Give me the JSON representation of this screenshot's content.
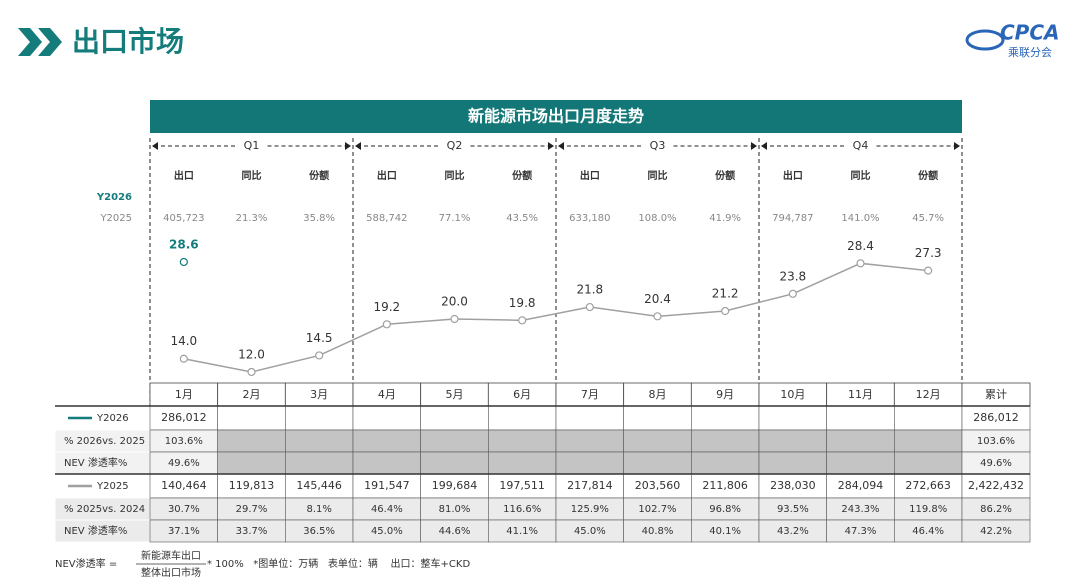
{
  "header": {
    "title": "出口市场",
    "logo": "CPCA",
    "logo_sub": "乘联分会"
  },
  "chart_data": {
    "type": "line",
    "title": "新能源市场出口月度走势",
    "categories": [
      "1月",
      "2月",
      "3月",
      "4月",
      "5月",
      "6月",
      "7月",
      "8月",
      "9月",
      "10月",
      "11月",
      "12月"
    ],
    "series": [
      {
        "name": "Y2026",
        "color": "#157c7c",
        "values": [
          28.6,
          null,
          null,
          null,
          null,
          null,
          null,
          null,
          null,
          null,
          null,
          null
        ],
        "value_labels": [
          "28.6",
          null,
          null,
          null,
          null,
          null,
          null,
          null,
          null,
          null,
          null,
          null
        ]
      },
      {
        "name": "Y2025",
        "color": "#a0a0a0",
        "values": [
          14.0,
          12.0,
          14.5,
          19.2,
          20.0,
          19.8,
          21.8,
          20.4,
          21.2,
          23.8,
          28.4,
          27.3
        ],
        "value_labels": [
          "14.0",
          "12.0",
          "14.5",
          "19.2",
          "20.0",
          "19.8",
          "21.8",
          "20.4",
          "21.2",
          "23.8",
          "28.4",
          "27.3"
        ]
      }
    ]
  },
  "quarters": [
    {
      "name": "Q1",
      "headers": [
        "出口",
        "同比",
        "份额"
      ],
      "y2025": [
        "405,723",
        "21.3%",
        "35.8%"
      ]
    },
    {
      "name": "Q2",
      "headers": [
        "出口",
        "同比",
        "份额"
      ],
      "y2025": [
        "588,742",
        "77.1%",
        "43.5%"
      ]
    },
    {
      "name": "Q3",
      "headers": [
        "出口",
        "同比",
        "份额"
      ],
      "y2025": [
        "633,180",
        "108.0%",
        "41.9%"
      ]
    },
    {
      "name": "Q4",
      "headers": [
        "出口",
        "同比",
        "份额"
      ],
      "y2025": [
        "794,787",
        "141.0%",
        "45.7%"
      ]
    }
  ],
  "table": {
    "total_header": "累计",
    "rows": [
      {
        "label": "Y2026",
        "cells": [
          "286,012",
          null,
          null,
          null,
          null,
          null,
          null,
          null,
          null,
          null,
          null,
          null,
          "286,012"
        ]
      },
      {
        "label": "% 2026vs. 2025",
        "cells": [
          "103.6%",
          null,
          null,
          null,
          null,
          null,
          null,
          null,
          null,
          null,
          null,
          null,
          "103.6%"
        ]
      },
      {
        "label": "NEV 渗透率%",
        "cells": [
          "49.6%",
          null,
          null,
          null,
          null,
          null,
          null,
          null,
          null,
          null,
          null,
          null,
          "49.6%"
        ]
      },
      {
        "label": "Y2025",
        "cells": [
          "140,464",
          "119,813",
          "145,446",
          "191,547",
          "199,684",
          "197,511",
          "217,814",
          "203,560",
          "211,806",
          "238,030",
          "284,094",
          "272,663",
          "2,422,432"
        ]
      },
      {
        "label": "% 2025vs. 2024",
        "cells": [
          "30.7%",
          "29.7%",
          "8.1%",
          "46.4%",
          "81.0%",
          "116.6%",
          "125.9%",
          "102.7%",
          "96.8%",
          "93.5%",
          "243.3%",
          "119.8%",
          "86.2%"
        ]
      },
      {
        "label": "NEV 渗透率%",
        "cells": [
          "37.1%",
          "33.7%",
          "36.5%",
          "45.0%",
          "44.6%",
          "41.1%",
          "45.0%",
          "40.8%",
          "40.1%",
          "43.2%",
          "47.3%",
          "46.4%",
          "42.2%"
        ]
      }
    ]
  },
  "footer": {
    "formula_label": "NEV渗透率 =",
    "numerator": "新能源车出口",
    "denominator": "整体出口市场",
    "note": "* 100%   *图单位：万辆   表单位：辆    出口：整车+CKD"
  }
}
